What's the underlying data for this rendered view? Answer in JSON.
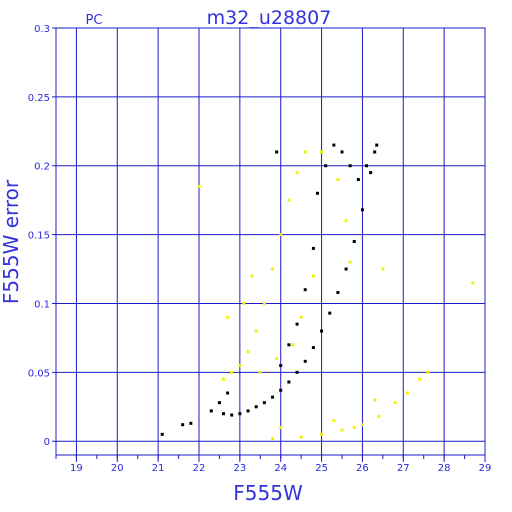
{
  "chart_data": {
    "type": "scatter",
    "title": "m32_u28807",
    "corner_label": "PC",
    "xlabel": "F555W",
    "ylabel": "F555W error",
    "xlim": [
      18.5,
      29
    ],
    "ylim": [
      -0.01,
      0.3
    ],
    "x_ticks": [
      "19",
      "20",
      "21",
      "22",
      "23",
      "24",
      "25",
      "26",
      "27",
      "28",
      "29"
    ],
    "y_ticks": [
      "0",
      "0.05",
      "0.1",
      "0.15",
      "0.2",
      "0.25",
      "0.3"
    ],
    "grid": true,
    "colors": {
      "axis": "#1c1cc8",
      "grid": "#1c1cc8",
      "text": "#3333dd",
      "series_black": "#000000",
      "series_yellow": "#f2f20a"
    },
    "series": [
      {
        "color": "black",
        "points": [
          [
            21.1,
            0.005
          ],
          [
            21.6,
            0.012
          ],
          [
            21.8,
            0.013
          ],
          [
            22.3,
            0.022
          ],
          [
            22.5,
            0.028
          ],
          [
            22.6,
            0.02
          ],
          [
            22.7,
            0.035
          ],
          [
            22.8,
            0.019
          ],
          [
            23.0,
            0.02
          ],
          [
            23.2,
            0.022
          ],
          [
            23.4,
            0.025
          ],
          [
            23.6,
            0.028
          ],
          [
            23.8,
            0.032
          ],
          [
            24.0,
            0.037
          ],
          [
            24.2,
            0.043
          ],
          [
            24.4,
            0.05
          ],
          [
            24.6,
            0.058
          ],
          [
            24.8,
            0.068
          ],
          [
            25.0,
            0.08
          ],
          [
            25.2,
            0.093
          ],
          [
            25.4,
            0.108
          ],
          [
            25.6,
            0.125
          ],
          [
            25.8,
            0.145
          ],
          [
            26.0,
            0.168
          ],
          [
            26.2,
            0.195
          ],
          [
            26.35,
            0.215
          ],
          [
            26.3,
            0.21
          ],
          [
            26.1,
            0.2
          ],
          [
            25.9,
            0.19
          ],
          [
            25.7,
            0.2
          ],
          [
            25.5,
            0.21
          ],
          [
            25.3,
            0.215
          ],
          [
            25.1,
            0.2
          ],
          [
            24.9,
            0.18
          ],
          [
            23.9,
            0.21
          ],
          [
            24.8,
            0.14
          ],
          [
            24.6,
            0.11
          ],
          [
            24.4,
            0.085
          ],
          [
            24.2,
            0.07
          ],
          [
            24.0,
            0.055
          ]
        ]
      },
      {
        "color": "yellow",
        "points": [
          [
            22.6,
            0.045
          ],
          [
            22.8,
            0.05
          ],
          [
            23.0,
            0.055
          ],
          [
            23.2,
            0.065
          ],
          [
            23.4,
            0.08
          ],
          [
            23.6,
            0.1
          ],
          [
            23.8,
            0.125
          ],
          [
            24.0,
            0.15
          ],
          [
            24.2,
            0.175
          ],
          [
            24.4,
            0.195
          ],
          [
            24.6,
            0.21
          ],
          [
            25.0,
            0.21
          ],
          [
            25.4,
            0.19
          ],
          [
            25.6,
            0.16
          ],
          [
            25.7,
            0.13
          ],
          [
            24.8,
            0.12
          ],
          [
            24.5,
            0.09
          ],
          [
            24.3,
            0.07
          ],
          [
            23.9,
            0.06
          ],
          [
            23.5,
            0.05
          ],
          [
            22.0,
            0.185
          ],
          [
            22.7,
            0.09
          ],
          [
            23.1,
            0.1
          ],
          [
            23.3,
            0.12
          ],
          [
            23.8,
            0.002
          ],
          [
            24.5,
            0.003
          ],
          [
            25.0,
            0.005
          ],
          [
            25.5,
            0.008
          ],
          [
            26.0,
            0.012
          ],
          [
            26.4,
            0.018
          ],
          [
            26.8,
            0.028
          ],
          [
            27.1,
            0.035
          ],
          [
            27.4,
            0.045
          ],
          [
            27.6,
            0.05
          ],
          [
            28.7,
            0.115
          ],
          [
            26.5,
            0.125
          ],
          [
            26.3,
            0.03
          ],
          [
            24.0,
            0.01
          ],
          [
            25.3,
            0.015
          ],
          [
            25.8,
            0.01
          ]
        ]
      }
    ]
  }
}
